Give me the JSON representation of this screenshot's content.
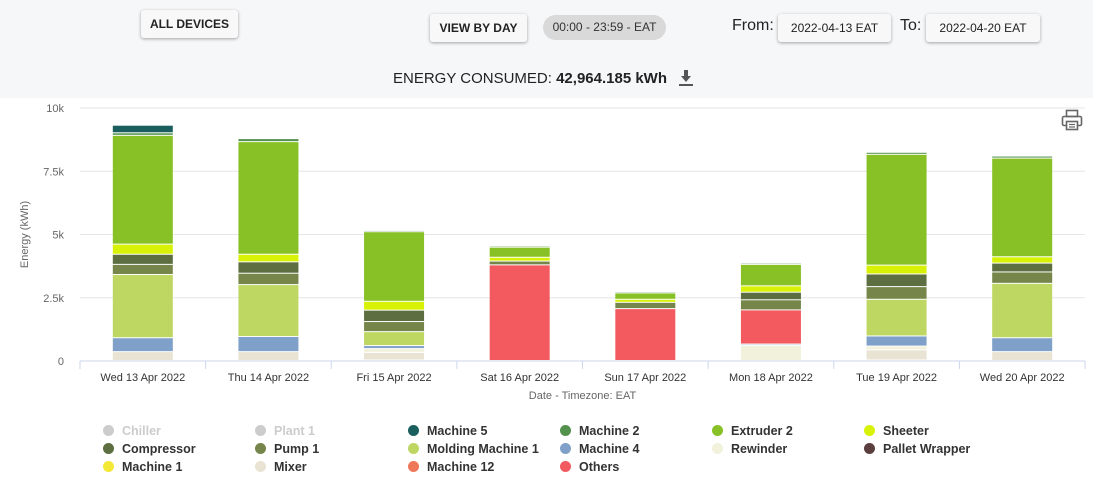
{
  "toolbar": {
    "all_devices": "ALL DEVICES",
    "view_by_day": "VIEW BY DAY",
    "time_range": "00:00 - 23:59 - EAT",
    "from_label": "From:",
    "from_date": "2022-04-13 EAT",
    "to_label": "To:",
    "to_date": "2022-04-20 EAT"
  },
  "summary": {
    "label": "ENERGY CONSUMED:",
    "value": "42,964.185 kWh"
  },
  "icons": {
    "download": "download-icon",
    "print": "print-icon"
  },
  "chart_data": {
    "type": "bar",
    "stacked": true,
    "categories": [
      "Wed 13 Apr 2022",
      "Thu 14 Apr 2022",
      "Fri 15 Apr 2022",
      "Sat 16 Apr 2022",
      "Sun 17 Apr 2022",
      "Mon 18 Apr 2022",
      "Tue 19 Apr 2022",
      "Wed 20 Apr 2022"
    ],
    "xlabel": "Date - Timezone: EAT",
    "ylabel": "Energy (kWh)",
    "ylim": [
      0,
      10000
    ],
    "yticks": [
      0,
      2500,
      5000,
      7500,
      10000
    ],
    "ytick_labels": [
      "0",
      "2.5k",
      "5k",
      "7.5k",
      "10k"
    ],
    "grid": true,
    "legend_position": "bottom",
    "series": [
      {
        "name": "Pallet Wrapper",
        "color": "#5b3f3f",
        "values": [
          0,
          0,
          20,
          0,
          0,
          0,
          20,
          0
        ]
      },
      {
        "name": "Mixer",
        "color": "#e8e3d3",
        "values": [
          350,
          350,
          300,
          0,
          0,
          0,
          400,
          350
        ]
      },
      {
        "name": "Rewinder",
        "color": "#f1f1dc",
        "values": [
          0,
          0,
          150,
          0,
          0,
          600,
          150,
          0
        ]
      },
      {
        "name": "Machine 4",
        "color": "#7fa0c8",
        "values": [
          550,
          600,
          120,
          0,
          0,
          50,
          400,
          550
        ]
      },
      {
        "name": "Machine 12",
        "color": "#f0785a",
        "values": [
          0,
          0,
          0,
          0,
          0,
          0,
          0,
          0
        ]
      },
      {
        "name": "Others",
        "color": "#f25a5f",
        "values": [
          0,
          0,
          0,
          3780,
          2050,
          1350,
          0,
          0
        ]
      },
      {
        "name": "Molding Machine 1",
        "color": "#bed662",
        "values": [
          2500,
          2050,
          550,
          0,
          0,
          0,
          1450,
          2150
        ]
      },
      {
        "name": "Pump 1",
        "color": "#76864a",
        "values": [
          400,
          450,
          400,
          150,
          250,
          400,
          500,
          450
        ]
      },
      {
        "name": "Compressor",
        "color": "#5d6e41",
        "values": [
          400,
          450,
          450,
          0,
          0,
          300,
          500,
          350
        ]
      },
      {
        "name": "Machine 1",
        "color": "#f2e835",
        "values": [
          0,
          0,
          0,
          0,
          0,
          0,
          0,
          0
        ]
      },
      {
        "name": "Sheeter",
        "color": "#d8f205",
        "values": [
          400,
          300,
          350,
          150,
          120,
          250,
          350,
          250
        ]
      },
      {
        "name": "Extruder 2",
        "color": "#87c126",
        "values": [
          4300,
          4450,
          2750,
          400,
          250,
          850,
          4380,
          3900
        ]
      },
      {
        "name": "Machine 2",
        "color": "#53914d",
        "values": [
          100,
          120,
          50,
          50,
          50,
          50,
          80,
          80
        ]
      },
      {
        "name": "Machine 5",
        "color": "#1b5e5e",
        "values": [
          300,
          0,
          0,
          0,
          0,
          0,
          0,
          0
        ]
      }
    ]
  },
  "legend": [
    {
      "name": "Chiller",
      "color": "#cccccc",
      "hidden": true
    },
    {
      "name": "Plant 1",
      "color": "#cccccc",
      "hidden": true
    },
    {
      "name": "Machine 5",
      "color": "#1b5e5e",
      "hidden": false
    },
    {
      "name": "Machine 2",
      "color": "#53914d",
      "hidden": false
    },
    {
      "name": "Extruder 2",
      "color": "#87c126",
      "hidden": false
    },
    {
      "name": "Sheeter",
      "color": "#d8f205",
      "hidden": false
    },
    {
      "name": "Compressor",
      "color": "#5d6e41",
      "hidden": false
    },
    {
      "name": "Pump 1",
      "color": "#76864a",
      "hidden": false
    },
    {
      "name": "Molding Machine 1",
      "color": "#bed662",
      "hidden": false
    },
    {
      "name": "Machine 4",
      "color": "#7fa0c8",
      "hidden": false
    },
    {
      "name": "Rewinder",
      "color": "#f1f1dc",
      "hidden": false
    },
    {
      "name": "Pallet Wrapper",
      "color": "#5b3f3f",
      "hidden": false
    },
    {
      "name": "Machine 1",
      "color": "#f2e835",
      "hidden": false
    },
    {
      "name": "Mixer",
      "color": "#e8e3d3",
      "hidden": false
    },
    {
      "name": "Machine 12",
      "color": "#f0785a",
      "hidden": false
    },
    {
      "name": "Others",
      "color": "#f25a5f",
      "hidden": false
    }
  ]
}
